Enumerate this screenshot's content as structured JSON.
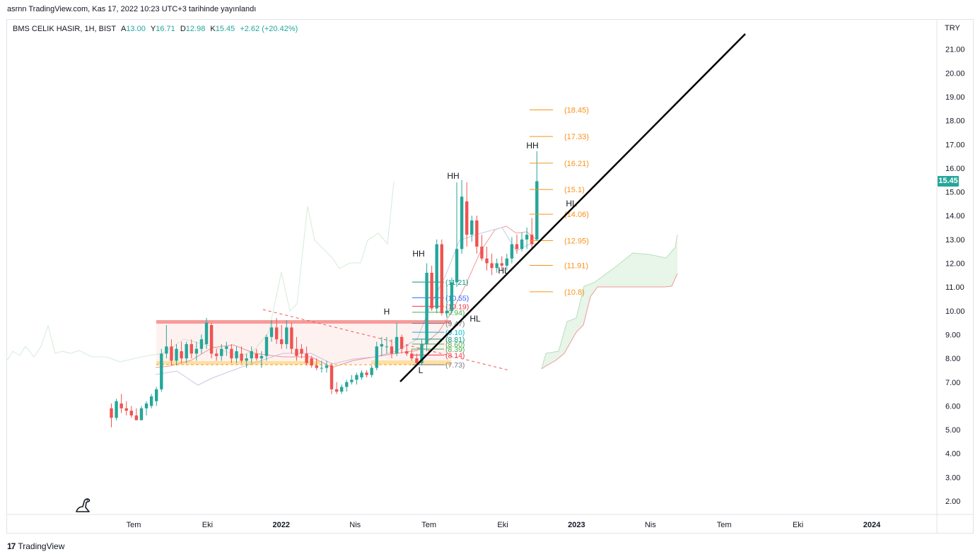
{
  "header": {
    "caption": "asrnn TradingView.com, Kas 17, 2022 10:23 UTC+3 tarihinde yayınlandı"
  },
  "legend": {
    "symbol": "BMS CELIK HASIR, 1H, BIST",
    "open_label": "A",
    "open": "13.00",
    "high_label": "Y",
    "high": "16.71",
    "low_label": "D",
    "low": "12.98",
    "close_label": "K",
    "close": "15.45",
    "change": "+2.62 (+20.42%)"
  },
  "price_axis": {
    "currency": "TRY",
    "last_price": "15.45"
  },
  "footer": {
    "brand": "TradingView",
    "brand_mark": "17"
  },
  "colors": {
    "up": "#26a69a",
    "down": "#ef5350",
    "fib": "#f7931a",
    "cloud_green": "#e8f5e9",
    "cloud_red": "#ffebee",
    "axis_text": "#131722"
  },
  "chart_data": {
    "type": "candlestick",
    "ylim": [
      1.6,
      22.6
    ],
    "y_ticks": [
      "2.00",
      "3.00",
      "4.00",
      "5.00",
      "6.00",
      "7.00",
      "8.00",
      "9.00",
      "10.00",
      "11.00",
      "12.00",
      "13.00",
      "14.00",
      "15.00",
      "16.00",
      "17.00",
      "18.00",
      "19.00",
      "20.00",
      "21.00"
    ],
    "x_ticks": [
      {
        "label": "Tem",
        "bold": false
      },
      {
        "label": "Eki",
        "bold": false
      },
      {
        "label": "2022",
        "bold": true
      },
      {
        "label": "Nis",
        "bold": false
      },
      {
        "label": "Tem",
        "bold": false
      },
      {
        "label": "Eki",
        "bold": false
      },
      {
        "label": "2023",
        "bold": true
      },
      {
        "label": "Nis",
        "bold": false
      },
      {
        "label": "Tem",
        "bold": false
      },
      {
        "label": "Eki",
        "bold": false
      },
      {
        "label": "2024",
        "bold": true
      }
    ],
    "candles": [
      [
        5.9,
        6.1,
        5.1,
        5.5
      ],
      [
        5.5,
        6.3,
        5.4,
        6.2
      ],
      [
        6.1,
        6.5,
        5.7,
        5.9
      ],
      [
        5.9,
        6.2,
        5.6,
        5.8
      ],
      [
        5.8,
        6.0,
        5.5,
        5.6
      ],
      [
        5.6,
        5.9,
        5.4,
        5.4
      ],
      [
        5.4,
        6.0,
        5.4,
        5.9
      ],
      [
        5.9,
        6.2,
        5.6,
        6.1
      ],
      [
        6.0,
        6.5,
        5.9,
        6.4
      ],
      [
        6.2,
        6.8,
        6.0,
        6.7
      ],
      [
        6.7,
        8.4,
        6.6,
        8.2
      ],
      [
        8.2,
        9.4,
        8.0,
        8.5
      ],
      [
        8.5,
        8.8,
        7.7,
        7.9
      ],
      [
        7.9,
        8.6,
        7.7,
        8.4
      ],
      [
        8.3,
        8.7,
        7.8,
        8.0
      ],
      [
        8.0,
        8.7,
        7.8,
        8.6
      ],
      [
        8.6,
        8.8,
        8.0,
        8.2
      ],
      [
        8.2,
        8.7,
        7.9,
        8.4
      ],
      [
        8.4,
        9.0,
        8.2,
        8.8
      ],
      [
        8.6,
        9.7,
        8.4,
        9.5
      ],
      [
        9.4,
        9.5,
        8.0,
        8.2
      ],
      [
        8.2,
        8.4,
        7.9,
        8.1
      ],
      [
        8.1,
        8.6,
        7.9,
        8.4
      ],
      [
        8.4,
        8.7,
        8.1,
        8.5
      ],
      [
        8.4,
        8.6,
        7.8,
        8.0
      ],
      [
        8.0,
        8.5,
        7.8,
        8.3
      ],
      [
        8.2,
        8.5,
        7.8,
        7.9
      ],
      [
        7.9,
        8.2,
        7.6,
        8.0
      ],
      [
        8.0,
        8.5,
        7.8,
        8.3
      ],
      [
        8.2,
        8.4,
        7.9,
        8.0
      ],
      [
        8.0,
        8.3,
        7.6,
        8.1
      ],
      [
        8.1,
        9.0,
        7.9,
        8.9
      ],
      [
        8.9,
        9.6,
        8.7,
        9.3
      ],
      [
        9.3,
        9.7,
        8.6,
        8.8
      ],
      [
        8.8,
        9.4,
        8.4,
        8.6
      ],
      [
        8.6,
        9.6,
        8.4,
        9.3
      ],
      [
        9.3,
        9.5,
        8.2,
        8.4
      ],
      [
        8.4,
        8.9,
        7.9,
        8.1
      ],
      [
        8.4,
        8.6,
        8.0,
        8.2
      ],
      [
        8.2,
        8.5,
        7.7,
        7.8
      ],
      [
        8.0,
        8.1,
        7.6,
        7.7
      ],
      [
        7.7,
        8.0,
        7.5,
        7.6
      ],
      [
        7.6,
        7.9,
        7.4,
        7.6
      ],
      [
        7.6,
        7.9,
        7.4,
        7.7
      ],
      [
        7.7,
        7.8,
        6.5,
        6.7
      ],
      [
        6.7,
        7.0,
        6.5,
        6.6
      ],
      [
        6.6,
        6.9,
        6.5,
        6.8
      ],
      [
        6.8,
        7.1,
        6.6,
        7.0
      ],
      [
        7.0,
        7.3,
        6.9,
        7.1
      ],
      [
        7.1,
        7.4,
        6.9,
        7.3
      ],
      [
        7.2,
        7.5,
        7.1,
        7.4
      ],
      [
        7.4,
        7.5,
        7.2,
        7.3
      ],
      [
        7.3,
        7.7,
        7.2,
        7.6
      ],
      [
        7.6,
        8.7,
        7.5,
        8.5
      ],
      [
        8.5,
        8.9,
        8.1,
        8.6
      ],
      [
        8.5,
        8.9,
        8.2,
        8.5
      ],
      [
        8.5,
        8.8,
        8.0,
        8.2
      ],
      [
        8.2,
        9.5,
        8.1,
        8.9
      ],
      [
        8.9,
        9.0,
        8.2,
        8.4
      ],
      [
        8.3,
        8.6,
        8.1,
        8.2
      ],
      [
        8.2,
        8.4,
        7.9,
        8.0
      ],
      [
        8.0,
        8.2,
        7.7,
        7.8
      ],
      [
        7.8,
        8.8,
        7.7,
        8.6
      ],
      [
        8.6,
        12.0,
        8.3,
        11.6
      ],
      [
        11.6,
        11.9,
        10.0,
        10.1
      ],
      [
        10.1,
        13.0,
        9.9,
        12.8
      ],
      [
        12.8,
        13.0,
        9.8,
        9.9
      ],
      [
        9.9,
        11.1,
        9.7,
        10.0
      ],
      [
        10.0,
        11.4,
        9.9,
        11.2
      ],
      [
        11.2,
        15.4,
        11.0,
        12.6
      ],
      [
        12.6,
        15.5,
        12.4,
        14.8
      ],
      [
        14.6,
        15.4,
        12.7,
        13.2
      ],
      [
        13.2,
        14.0,
        12.9,
        13.8
      ],
      [
        13.8,
        14.0,
        12.4,
        12.7
      ],
      [
        12.7,
        13.2,
        12.1,
        12.2
      ],
      [
        12.2,
        12.7,
        11.7,
        12.0
      ],
      [
        12.0,
        12.4,
        11.5,
        11.8
      ],
      [
        11.8,
        12.2,
        11.6,
        12.0
      ],
      [
        12.0,
        12.3,
        11.7,
        11.9
      ],
      [
        11.9,
        12.4,
        11.7,
        12.2
      ],
      [
        12.2,
        13.1,
        12.0,
        12.8
      ],
      [
        12.8,
        13.2,
        12.4,
        12.6
      ],
      [
        12.6,
        13.3,
        12.5,
        13.0
      ],
      [
        13.0,
        13.5,
        12.6,
        13.2
      ],
      [
        13.2,
        13.9,
        12.6,
        12.8
      ],
      [
        13.0,
        16.71,
        12.98,
        15.45
      ]
    ],
    "fib_levels": [
      "18.45",
      "17.33",
      "16.21",
      "15.1",
      "14.06",
      "12.95",
      "11.91",
      "10.8"
    ],
    "fib_levels_left": [
      "11.21",
      "10.55",
      "10.19",
      "9.94",
      "9.47",
      "9.10",
      "8.81",
      "8.60",
      "8.39",
      "8.14",
      "7.73"
    ],
    "annotations": [
      "HH",
      "HH",
      "HH",
      "H",
      "HL",
      "HL",
      "HL",
      "L"
    ]
  }
}
